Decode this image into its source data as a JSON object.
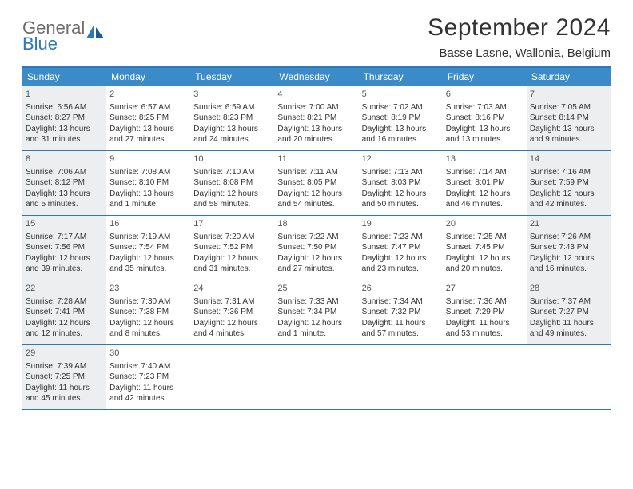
{
  "logo": {
    "general": "General",
    "blue": "Blue"
  },
  "title": "September 2024",
  "location": "Basse Lasne, Wallonia, Belgium",
  "colors": {
    "header_bg": "#3b8bc9",
    "border": "#2e77b8",
    "shaded": "#eceeef",
    "text": "#333333",
    "logo_gray": "#6b6b6b",
    "logo_blue": "#2e77b8"
  },
  "weekdays": [
    "Sunday",
    "Monday",
    "Tuesday",
    "Wednesday",
    "Thursday",
    "Friday",
    "Saturday"
  ],
  "weeks": [
    [
      {
        "num": "1",
        "shaded": true,
        "sunrise": "Sunrise: 6:56 AM",
        "sunset": "Sunset: 8:27 PM",
        "day1": "Daylight: 13 hours",
        "day2": "and 31 minutes."
      },
      {
        "num": "2",
        "shaded": false,
        "sunrise": "Sunrise: 6:57 AM",
        "sunset": "Sunset: 8:25 PM",
        "day1": "Daylight: 13 hours",
        "day2": "and 27 minutes."
      },
      {
        "num": "3",
        "shaded": false,
        "sunrise": "Sunrise: 6:59 AM",
        "sunset": "Sunset: 8:23 PM",
        "day1": "Daylight: 13 hours",
        "day2": "and 24 minutes."
      },
      {
        "num": "4",
        "shaded": false,
        "sunrise": "Sunrise: 7:00 AM",
        "sunset": "Sunset: 8:21 PM",
        "day1": "Daylight: 13 hours",
        "day2": "and 20 minutes."
      },
      {
        "num": "5",
        "shaded": false,
        "sunrise": "Sunrise: 7:02 AM",
        "sunset": "Sunset: 8:19 PM",
        "day1": "Daylight: 13 hours",
        "day2": "and 16 minutes."
      },
      {
        "num": "6",
        "shaded": false,
        "sunrise": "Sunrise: 7:03 AM",
        "sunset": "Sunset: 8:16 PM",
        "day1": "Daylight: 13 hours",
        "day2": "and 13 minutes."
      },
      {
        "num": "7",
        "shaded": true,
        "sunrise": "Sunrise: 7:05 AM",
        "sunset": "Sunset: 8:14 PM",
        "day1": "Daylight: 13 hours",
        "day2": "and 9 minutes."
      }
    ],
    [
      {
        "num": "8",
        "shaded": true,
        "sunrise": "Sunrise: 7:06 AM",
        "sunset": "Sunset: 8:12 PM",
        "day1": "Daylight: 13 hours",
        "day2": "and 5 minutes."
      },
      {
        "num": "9",
        "shaded": false,
        "sunrise": "Sunrise: 7:08 AM",
        "sunset": "Sunset: 8:10 PM",
        "day1": "Daylight: 13 hours",
        "day2": "and 1 minute."
      },
      {
        "num": "10",
        "shaded": false,
        "sunrise": "Sunrise: 7:10 AM",
        "sunset": "Sunset: 8:08 PM",
        "day1": "Daylight: 12 hours",
        "day2": "and 58 minutes."
      },
      {
        "num": "11",
        "shaded": false,
        "sunrise": "Sunrise: 7:11 AM",
        "sunset": "Sunset: 8:05 PM",
        "day1": "Daylight: 12 hours",
        "day2": "and 54 minutes."
      },
      {
        "num": "12",
        "shaded": false,
        "sunrise": "Sunrise: 7:13 AM",
        "sunset": "Sunset: 8:03 PM",
        "day1": "Daylight: 12 hours",
        "day2": "and 50 minutes."
      },
      {
        "num": "13",
        "shaded": false,
        "sunrise": "Sunrise: 7:14 AM",
        "sunset": "Sunset: 8:01 PM",
        "day1": "Daylight: 12 hours",
        "day2": "and 46 minutes."
      },
      {
        "num": "14",
        "shaded": true,
        "sunrise": "Sunrise: 7:16 AM",
        "sunset": "Sunset: 7:59 PM",
        "day1": "Daylight: 12 hours",
        "day2": "and 42 minutes."
      }
    ],
    [
      {
        "num": "15",
        "shaded": true,
        "sunrise": "Sunrise: 7:17 AM",
        "sunset": "Sunset: 7:56 PM",
        "day1": "Daylight: 12 hours",
        "day2": "and 39 minutes."
      },
      {
        "num": "16",
        "shaded": false,
        "sunrise": "Sunrise: 7:19 AM",
        "sunset": "Sunset: 7:54 PM",
        "day1": "Daylight: 12 hours",
        "day2": "and 35 minutes."
      },
      {
        "num": "17",
        "shaded": false,
        "sunrise": "Sunrise: 7:20 AM",
        "sunset": "Sunset: 7:52 PM",
        "day1": "Daylight: 12 hours",
        "day2": "and 31 minutes."
      },
      {
        "num": "18",
        "shaded": false,
        "sunrise": "Sunrise: 7:22 AM",
        "sunset": "Sunset: 7:50 PM",
        "day1": "Daylight: 12 hours",
        "day2": "and 27 minutes."
      },
      {
        "num": "19",
        "shaded": false,
        "sunrise": "Sunrise: 7:23 AM",
        "sunset": "Sunset: 7:47 PM",
        "day1": "Daylight: 12 hours",
        "day2": "and 23 minutes."
      },
      {
        "num": "20",
        "shaded": false,
        "sunrise": "Sunrise: 7:25 AM",
        "sunset": "Sunset: 7:45 PM",
        "day1": "Daylight: 12 hours",
        "day2": "and 20 minutes."
      },
      {
        "num": "21",
        "shaded": true,
        "sunrise": "Sunrise: 7:26 AM",
        "sunset": "Sunset: 7:43 PM",
        "day1": "Daylight: 12 hours",
        "day2": "and 16 minutes."
      }
    ],
    [
      {
        "num": "22",
        "shaded": true,
        "sunrise": "Sunrise: 7:28 AM",
        "sunset": "Sunset: 7:41 PM",
        "day1": "Daylight: 12 hours",
        "day2": "and 12 minutes."
      },
      {
        "num": "23",
        "shaded": false,
        "sunrise": "Sunrise: 7:30 AM",
        "sunset": "Sunset: 7:38 PM",
        "day1": "Daylight: 12 hours",
        "day2": "and 8 minutes."
      },
      {
        "num": "24",
        "shaded": false,
        "sunrise": "Sunrise: 7:31 AM",
        "sunset": "Sunset: 7:36 PM",
        "day1": "Daylight: 12 hours",
        "day2": "and 4 minutes."
      },
      {
        "num": "25",
        "shaded": false,
        "sunrise": "Sunrise: 7:33 AM",
        "sunset": "Sunset: 7:34 PM",
        "day1": "Daylight: 12 hours",
        "day2": "and 1 minute."
      },
      {
        "num": "26",
        "shaded": false,
        "sunrise": "Sunrise: 7:34 AM",
        "sunset": "Sunset: 7:32 PM",
        "day1": "Daylight: 11 hours",
        "day2": "and 57 minutes."
      },
      {
        "num": "27",
        "shaded": false,
        "sunrise": "Sunrise: 7:36 AM",
        "sunset": "Sunset: 7:29 PM",
        "day1": "Daylight: 11 hours",
        "day2": "and 53 minutes."
      },
      {
        "num": "28",
        "shaded": true,
        "sunrise": "Sunrise: 7:37 AM",
        "sunset": "Sunset: 7:27 PM",
        "day1": "Daylight: 11 hours",
        "day2": "and 49 minutes."
      }
    ],
    [
      {
        "num": "29",
        "shaded": true,
        "sunrise": "Sunrise: 7:39 AM",
        "sunset": "Sunset: 7:25 PM",
        "day1": "Daylight: 11 hours",
        "day2": "and 45 minutes."
      },
      {
        "num": "30",
        "shaded": false,
        "sunrise": "Sunrise: 7:40 AM",
        "sunset": "Sunset: 7:23 PM",
        "day1": "Daylight: 11 hours",
        "day2": "and 42 minutes."
      },
      {
        "num": "",
        "shaded": false,
        "sunrise": "",
        "sunset": "",
        "day1": "",
        "day2": ""
      },
      {
        "num": "",
        "shaded": false,
        "sunrise": "",
        "sunset": "",
        "day1": "",
        "day2": ""
      },
      {
        "num": "",
        "shaded": false,
        "sunrise": "",
        "sunset": "",
        "day1": "",
        "day2": ""
      },
      {
        "num": "",
        "shaded": false,
        "sunrise": "",
        "sunset": "",
        "day1": "",
        "day2": ""
      },
      {
        "num": "",
        "shaded": false,
        "sunrise": "",
        "sunset": "",
        "day1": "",
        "day2": ""
      }
    ]
  ]
}
